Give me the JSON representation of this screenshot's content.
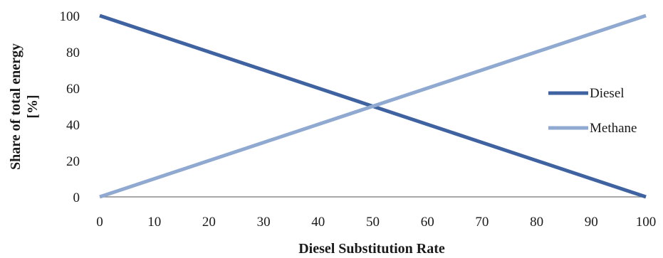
{
  "chart_data": {
    "type": "line",
    "x": [
      0,
      10,
      20,
      30,
      40,
      50,
      60,
      70,
      80,
      90,
      100
    ],
    "series": [
      {
        "name": "Diesel",
        "color": "#3f62a0",
        "values": [
          100,
          90,
          80,
          70,
          60,
          50,
          40,
          30,
          20,
          10,
          0
        ]
      },
      {
        "name": "Methane",
        "color": "#8fa9d1",
        "values": [
          0,
          10,
          20,
          30,
          40,
          50,
          60,
          70,
          80,
          90,
          100
        ]
      }
    ],
    "title": "",
    "xlabel": "Diesel Substitution Rate",
    "ylabel_line1": "Share of total energy",
    "ylabel_line2": "[%]",
    "xlim": [
      0,
      100
    ],
    "ylim": [
      0,
      100
    ],
    "x_ticks": [
      "0",
      "10",
      "20",
      "30",
      "40",
      "50",
      "60",
      "70",
      "80",
      "90",
      "100"
    ],
    "y_ticks": [
      "0",
      "20",
      "40",
      "60",
      "80",
      "100"
    ],
    "grid": false,
    "legend_position": "right"
  }
}
